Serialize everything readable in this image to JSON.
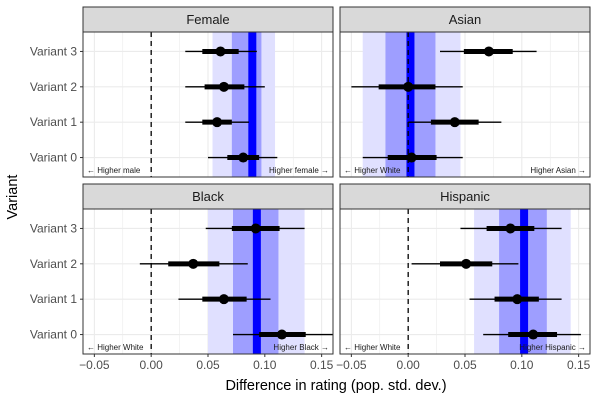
{
  "chart_data": {
    "type": "forest",
    "xlabel": "Difference in rating (pop. std. dev.)",
    "ylabel": "Variant",
    "xlim": [
      -0.06,
      0.16
    ],
    "xticks": [
      -0.05,
      0.0,
      0.05,
      0.1,
      0.15
    ],
    "xtick_labels": [
      "−0.05",
      "0.00",
      "0.05",
      "0.10",
      "0.15"
    ],
    "variants": [
      "Variant 0",
      "Variant 1",
      "Variant 2",
      "Variant 3"
    ],
    "reference_line": 0,
    "colors": {
      "strip_fill": "#d9d9d9",
      "panel_border": "#333333",
      "grid": "#ebebeb",
      "band_outer": "#e0e0ff",
      "band_inner": "#9e9eff",
      "center_line": "#0000ff",
      "point": "#000000"
    },
    "panels": [
      {
        "name": "Female",
        "band_outer": [
          0.054,
          0.109
        ],
        "band_inner": [
          0.071,
          0.097
        ],
        "center": 0.089,
        "note_left": "← Higher male",
        "note_right": "Higher female →",
        "estimates": [
          {
            "variant": "Variant 0",
            "est": 0.081,
            "thick": [
              0.067,
              0.095
            ],
            "thin": [
              0.05,
              0.111
            ]
          },
          {
            "variant": "Variant 1",
            "est": 0.058,
            "thick": [
              0.045,
              0.071
            ],
            "thin": [
              0.03,
              0.086
            ]
          },
          {
            "variant": "Variant 2",
            "est": 0.064,
            "thick": [
              0.047,
              0.082
            ],
            "thin": [
              0.03,
              0.1
            ]
          },
          {
            "variant": "Variant 3",
            "est": 0.061,
            "thick": [
              0.045,
              0.077
            ],
            "thin": [
              0.03,
              0.093
            ]
          }
        ]
      },
      {
        "name": "Asian",
        "band_outer": [
          -0.04,
          0.046
        ],
        "band_inner": [
          -0.02,
          0.024
        ],
        "center": 0.002,
        "note_left": "← Higher White",
        "note_right": "Higher Asian →",
        "estimates": [
          {
            "variant": "Variant 0",
            "est": 0.003,
            "thick": [
              -0.018,
              0.025
            ],
            "thin": [
              -0.04,
              0.048
            ]
          },
          {
            "variant": "Variant 1",
            "est": 0.041,
            "thick": [
              0.02,
              0.062
            ],
            "thin": [
              0.0,
              0.082
            ]
          },
          {
            "variant": "Variant 2",
            "est": 0.0,
            "thick": [
              -0.026,
              0.024
            ],
            "thin": [
              -0.05,
              0.048
            ]
          },
          {
            "variant": "Variant 3",
            "est": 0.071,
            "thick": [
              0.049,
              0.092
            ],
            "thin": [
              0.028,
              0.113
            ]
          }
        ]
      },
      {
        "name": "Black",
        "band_outer": [
          0.05,
          0.135
        ],
        "band_inner": [
          0.072,
          0.112
        ],
        "center": 0.093,
        "note_left": "← Higher White",
        "note_right": "Higher Black →",
        "estimates": [
          {
            "variant": "Variant 0",
            "est": 0.115,
            "thick": [
              0.095,
              0.136
            ],
            "thin": [
              0.072,
              0.16
            ]
          },
          {
            "variant": "Variant 1",
            "est": 0.064,
            "thick": [
              0.045,
              0.084
            ],
            "thin": [
              0.024,
              0.105
            ]
          },
          {
            "variant": "Variant 2",
            "est": 0.037,
            "thick": [
              0.015,
              0.06
            ],
            "thin": [
              -0.01,
              0.085
            ]
          },
          {
            "variant": "Variant 3",
            "est": 0.092,
            "thick": [
              0.071,
              0.113
            ],
            "thin": [
              0.048,
              0.135
            ]
          }
        ]
      },
      {
        "name": "Hispanic",
        "band_outer": [
          0.058,
          0.143
        ],
        "band_inner": [
          0.08,
          0.122
        ],
        "center": 0.102,
        "note_left": "← Higher White",
        "note_right": "Higher Hispanic →",
        "estimates": [
          {
            "variant": "Variant 0",
            "est": 0.11,
            "thick": [
              0.088,
              0.131
            ],
            "thin": [
              0.066,
              0.152
            ]
          },
          {
            "variant": "Variant 1",
            "est": 0.096,
            "thick": [
              0.076,
              0.115
            ],
            "thin": [
              0.054,
              0.135
            ]
          },
          {
            "variant": "Variant 2",
            "est": 0.051,
            "thick": [
              0.028,
              0.074
            ],
            "thin": [
              0.003,
              0.097
            ]
          },
          {
            "variant": "Variant 3",
            "est": 0.09,
            "thick": [
              0.069,
              0.111
            ],
            "thin": [
              0.046,
              0.135
            ]
          }
        ]
      }
    ]
  }
}
